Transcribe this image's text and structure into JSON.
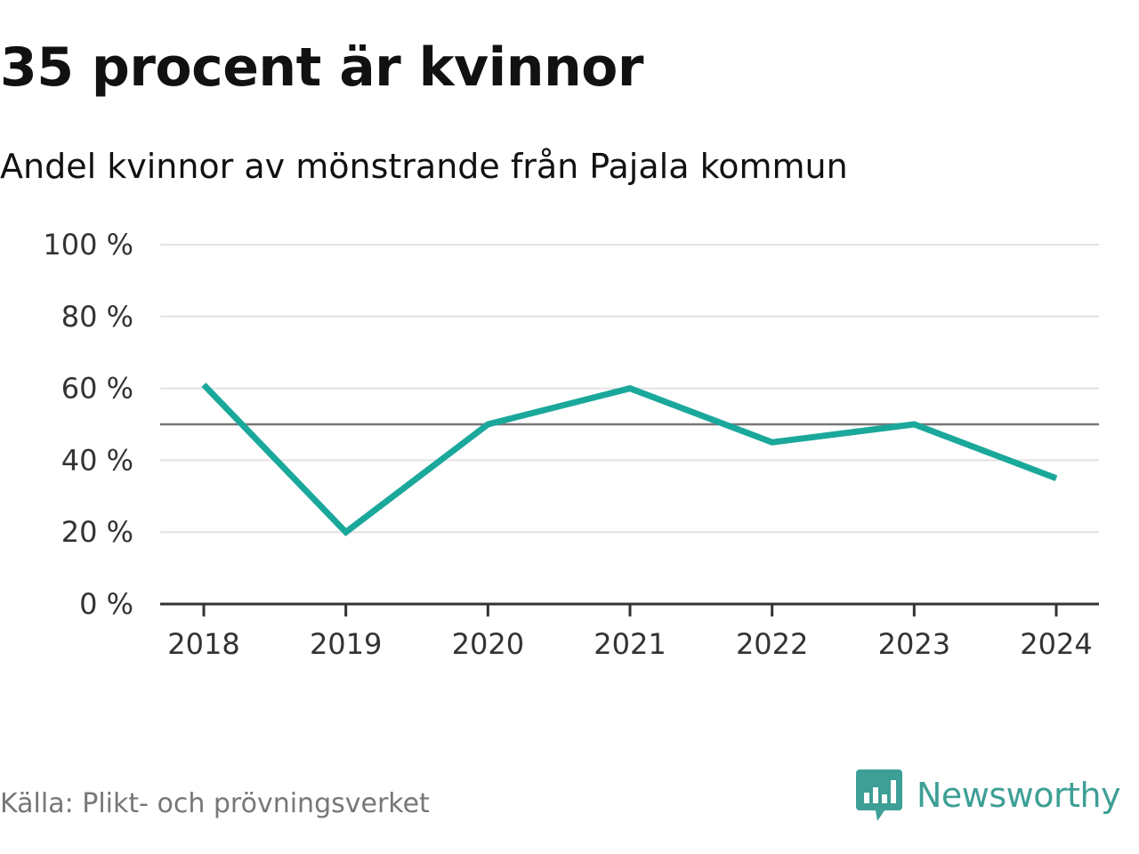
{
  "header": {
    "title": "35 procent är kvinnor",
    "subtitle": "Andel kvinnor av mönstrande från Pajala kommun"
  },
  "footer": {
    "source": "Källa: Plikt- och prövningsverket",
    "brand": "Newsworthy",
    "brand_icon": "bar-chart-speech-bubble-icon"
  },
  "colors": {
    "line": "#1aa89b",
    "grid": "#e2e2e2",
    "reference": "#777777",
    "axis": "#333333",
    "brand": "#3d9f95"
  },
  "chart_data": {
    "type": "line",
    "x": [
      "2018",
      "2019",
      "2020",
      "2021",
      "2022",
      "2023",
      "2024"
    ],
    "series": [
      {
        "values": [
          61,
          20,
          50,
          60,
          45,
          50,
          35
        ]
      }
    ],
    "ylim": [
      0,
      100
    ],
    "yticks": [
      0,
      20,
      40,
      60,
      80,
      100
    ],
    "ytick_labels": [
      "0 %",
      "20 %",
      "40 %",
      "60 %",
      "80 %",
      "100 %"
    ],
    "reference_line": 50,
    "grid": true,
    "legend": "none",
    "xlabel": "",
    "ylabel": ""
  }
}
